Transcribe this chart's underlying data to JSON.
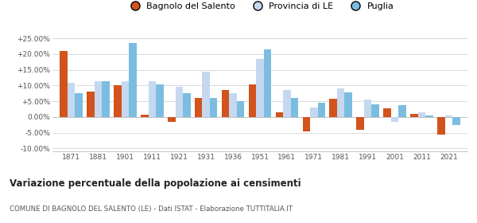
{
  "years": [
    1871,
    1881,
    1901,
    1911,
    1921,
    1931,
    1936,
    1951,
    1961,
    1971,
    1981,
    1991,
    2001,
    2011,
    2021
  ],
  "bagnolo": [
    21.0,
    8.0,
    10.0,
    0.7,
    -1.5,
    6.0,
    8.5,
    10.5,
    1.5,
    -4.5,
    5.8,
    -4.0,
    2.8,
    1.0,
    -5.5
  ],
  "provincia": [
    11.0,
    11.5,
    11.5,
    11.5,
    9.5,
    14.5,
    7.5,
    18.5,
    8.5,
    3.0,
    9.0,
    5.5,
    -1.5,
    1.5,
    0.5
  ],
  "puglia": [
    7.5,
    11.5,
    23.5,
    10.5,
    7.5,
    6.0,
    5.0,
    21.5,
    6.0,
    4.5,
    7.8,
    4.0,
    3.8,
    0.5,
    -2.5
  ],
  "color_bagnolo": "#d2531c",
  "color_provincia": "#c5d8f0",
  "color_puglia": "#7bbde0",
  "title": "Variazione percentuale della popolazione ai censimenti",
  "subtitle": "COMUNE DI BAGNOLO DEL SALENTO (LE) - Dati ISTAT - Elaborazione TUTTITALIA.IT",
  "ylim": [
    -11.0,
    28.0
  ],
  "yticks": [
    -10.0,
    -5.0,
    0.0,
    5.0,
    10.0,
    15.0,
    20.0,
    25.0
  ],
  "ytick_labels": [
    "-10.00%",
    "-5.00%",
    "0.00%",
    "+5.00%",
    "+10.00%",
    "+15.00%",
    "+20.00%",
    "+25.00%"
  ],
  "legend_labels": [
    "Bagnolo del Salento",
    "Provincia di LE",
    "Puglia"
  ],
  "bar_width": 0.28
}
